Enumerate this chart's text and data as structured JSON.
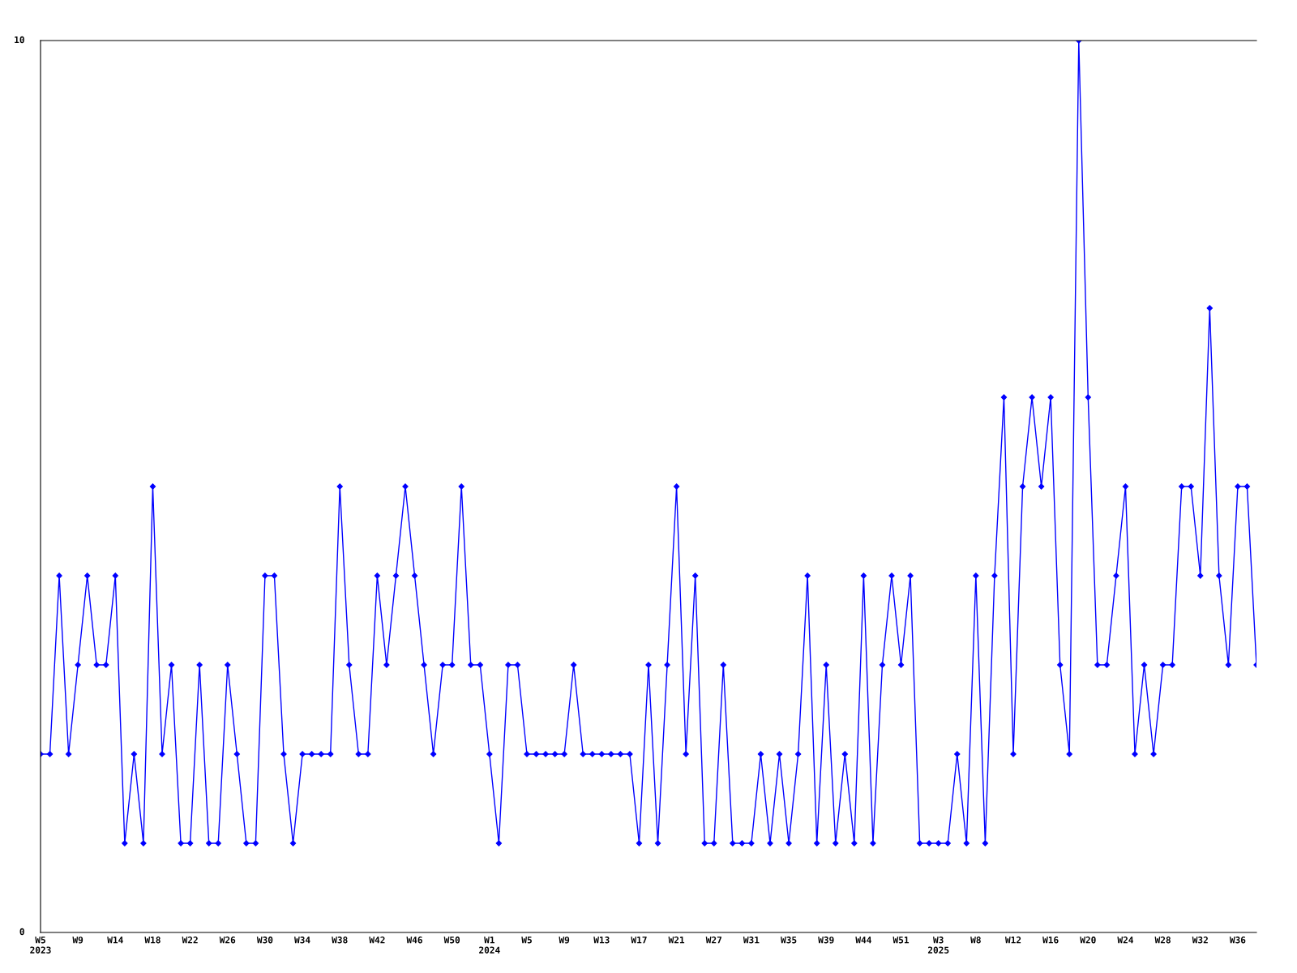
{
  "chart_data": {
    "type": "line",
    "categories": [
      "W5\n2023",
      null,
      null,
      null,
      "W9",
      null,
      null,
      null,
      "W14",
      null,
      null,
      null,
      "W18",
      null,
      null,
      null,
      "W22",
      null,
      null,
      null,
      "W26",
      null,
      null,
      null,
      "W30",
      null,
      null,
      null,
      "W34",
      null,
      null,
      null,
      "W38",
      null,
      null,
      null,
      "W42",
      null,
      null,
      null,
      "W46",
      null,
      null,
      null,
      "W50",
      null,
      null,
      null,
      "W1\n2024",
      null,
      null,
      null,
      "W5",
      null,
      null,
      null,
      "W9",
      null,
      null,
      null,
      "W13",
      null,
      null,
      null,
      "W17",
      null,
      null,
      null,
      "W21",
      null,
      null,
      null,
      "W27",
      null,
      null,
      null,
      "W31",
      null,
      null,
      null,
      "W35",
      null,
      null,
      null,
      "W39",
      null,
      null,
      null,
      "W44",
      null,
      null,
      null,
      "W51",
      null,
      null,
      null,
      "W3\n2025",
      null,
      null,
      null,
      "W8",
      null,
      null,
      null,
      "W12",
      null,
      null,
      null,
      "W16",
      null,
      null,
      null,
      "W20",
      null,
      null,
      null,
      "W24",
      null,
      null,
      null,
      "W28",
      null,
      null,
      null,
      "W32",
      null,
      null,
      null,
      "W36",
      null,
      null
    ],
    "series": [
      {
        "color": "#0000ff",
        "values": [
          2,
          2,
          4,
          2,
          3,
          4,
          3,
          3,
          4,
          1,
          2,
          1,
          5,
          2,
          3,
          1,
          1,
          3,
          1,
          1,
          3,
          2,
          1,
          1,
          4,
          4,
          2,
          1,
          2,
          2,
          2,
          2,
          5,
          3,
          2,
          2,
          4,
          3,
          4,
          5,
          4,
          3,
          2,
          3,
          3,
          5,
          3,
          3,
          2,
          1,
          3,
          3,
          2,
          2,
          2,
          2,
          2,
          3,
          2,
          2,
          2,
          2,
          2,
          2,
          1,
          3,
          1,
          3,
          5,
          2,
          4,
          1,
          1,
          3,
          1,
          1,
          1,
          2,
          1,
          2,
          1,
          2,
          4,
          1,
          3,
          1,
          2,
          1,
          4,
          1,
          3,
          4,
          3,
          4,
          1,
          1,
          1,
          1,
          2,
          1,
          4,
          1,
          4,
          6,
          2,
          5,
          6,
          5,
          6,
          3,
          2,
          10,
          6,
          3,
          3,
          4,
          5,
          2,
          3,
          2,
          3,
          3,
          5,
          5,
          4,
          7,
          4,
          3,
          5,
          5,
          3
        ]
      }
    ],
    "ylim": [
      0,
      10
    ],
    "yticks": [
      0,
      10
    ],
    "grid": false,
    "legend": false,
    "marker": "diamond",
    "line_style": "solid"
  }
}
